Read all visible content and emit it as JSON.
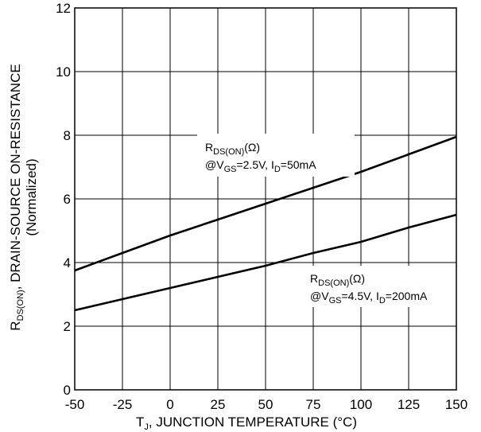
{
  "chart_data": {
    "type": "line",
    "x_ticks": [
      "-50",
      "-25",
      "0",
      "25",
      "50",
      "75",
      "100",
      "125",
      "150"
    ],
    "y_ticks": [
      "0",
      "2",
      "4",
      "6",
      "8",
      "10",
      "12"
    ],
    "xlim": [
      -50,
      150
    ],
    "ylim": [
      0,
      12
    ],
    "grid": true,
    "xlabel": {
      "main": "T",
      "sub": "J",
      "rest": ", JUNCTION TEMPERATURE (°C)"
    },
    "ylabel": {
      "line1_main": "R",
      "line1_sub": "DS(ON)",
      "line1_rest": ", DRAIN-SOURCE ON-RESISTANCE",
      "line2": "(Normalized)"
    },
    "series": [
      {
        "label": {
          "r": "R",
          "r_sub": "DS(ON)",
          "unit": "(Ω)",
          "cond_a": "@V",
          "cond_a_sub": "GS",
          "cond_b": "=2.5V, I",
          "cond_b_sub": "D",
          "cond_c": "=50mA"
        },
        "x": [
          -50,
          -25,
          0,
          25,
          50,
          75,
          100,
          125,
          150
        ],
        "y": [
          3.75,
          4.3,
          4.85,
          5.35,
          5.85,
          6.35,
          6.85,
          7.4,
          7.95
        ]
      },
      {
        "label": {
          "r": "R",
          "r_sub": "DS(ON)",
          "unit": "(Ω)",
          "cond_a": "@V",
          "cond_a_sub": "GS",
          "cond_b": "=4.5V, I",
          "cond_b_sub": "D",
          "cond_c": "=200mA"
        },
        "x": [
          -50,
          -25,
          0,
          25,
          50,
          75,
          100,
          125,
          150
        ],
        "y": [
          2.5,
          2.85,
          3.2,
          3.55,
          3.9,
          4.3,
          4.65,
          5.1,
          5.5
        ]
      }
    ]
  }
}
